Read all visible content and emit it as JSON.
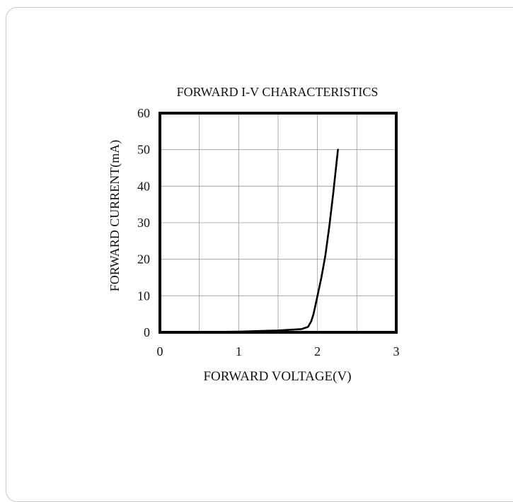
{
  "chart_data": {
    "type": "line",
    "title": "FORWARD I-V CHARACTERISTICS",
    "xlabel": "FORWARD VOLTAGE(V)",
    "ylabel": "FORWARD CURRENT(mA)",
    "xlim": [
      0,
      3
    ],
    "ylim": [
      0,
      60
    ],
    "x_ticks": [
      0,
      1,
      2,
      3
    ],
    "y_ticks": [
      0,
      10,
      20,
      30,
      40,
      50,
      60
    ],
    "grid": true,
    "series": [
      {
        "x": [
          0,
          0.5,
          1.0,
          1.5,
          1.8,
          1.88,
          1.92,
          1.95,
          2.0,
          2.05,
          2.1,
          2.15,
          2.2,
          2.26
        ],
        "y": [
          0,
          0.05,
          0.2,
          0.5,
          0.9,
          1.5,
          3.0,
          5.0,
          10.0,
          15.0,
          21.0,
          29.0,
          38.0,
          50.0
        ],
        "color": "#000000"
      }
    ]
  }
}
